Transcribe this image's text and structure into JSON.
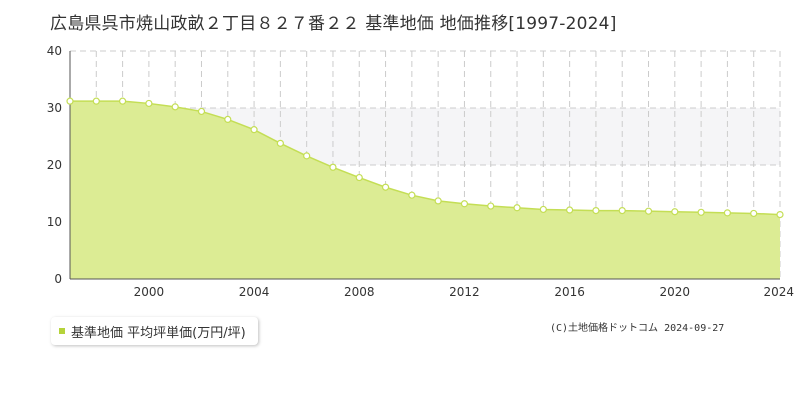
{
  "title": "広島県呉市焼山政畝２丁目８２７番２２ 基準地価 地価推移[1997-2024]",
  "legend_label": "基準地価 平均坪単価(万円/坪)",
  "copyright": "(C)土地価格ドットコム 2024-09-27",
  "colors": {
    "area_fill": "#dcec94",
    "line": "#c4de55",
    "marker_fill": "#ffffff",
    "marker_stroke": "#c4de55",
    "band": "#f5f5f7",
    "grid": "#cccccc",
    "legend_marker": "#b5d33a"
  },
  "chart_data": {
    "type": "area",
    "x": [
      1997,
      1998,
      1999,
      2000,
      2001,
      2002,
      2003,
      2004,
      2005,
      2006,
      2007,
      2008,
      2009,
      2010,
      2011,
      2012,
      2013,
      2014,
      2015,
      2016,
      2017,
      2018,
      2019,
      2020,
      2021,
      2022,
      2023,
      2024
    ],
    "series": [
      {
        "name": "基準地価 平均坪単価(万円/坪)",
        "values": [
          31.2,
          31.2,
          31.2,
          30.8,
          30.2,
          29.4,
          28.0,
          26.2,
          23.8,
          21.6,
          19.6,
          17.8,
          16.1,
          14.7,
          13.7,
          13.2,
          12.8,
          12.5,
          12.2,
          12.1,
          12.0,
          12.0,
          11.9,
          11.8,
          11.7,
          11.6,
          11.5,
          11.3
        ]
      }
    ],
    "xlim": [
      1997,
      2024
    ],
    "ylim": [
      0,
      40
    ],
    "xticks": [
      2000,
      2004,
      2008,
      2012,
      2016,
      2020,
      2024
    ],
    "yticks": [
      0,
      10,
      20,
      30,
      40
    ],
    "xlabel": "",
    "ylabel": "",
    "grid": true,
    "legend_position": "bottom-left"
  }
}
